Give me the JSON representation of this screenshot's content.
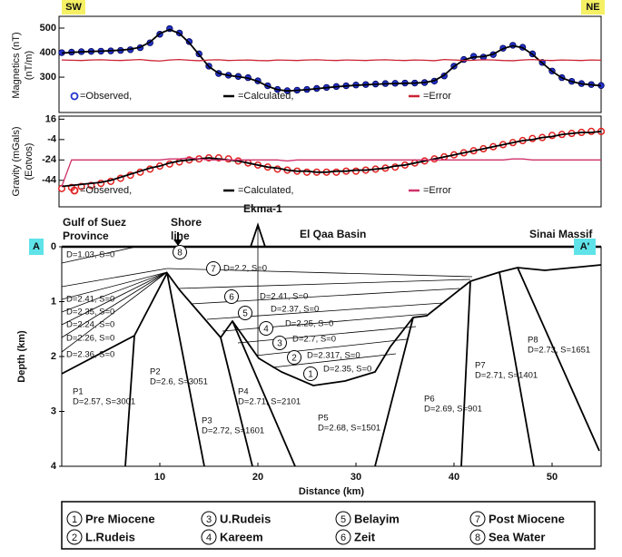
{
  "chart_data": [
    {
      "type": "line",
      "ylabel": "Magnetics (nT)",
      "ylabel_sub": "(nT/m)",
      "corner_labels": [
        "SW",
        "NE"
      ],
      "xlim": [
        0,
        55
      ],
      "ylim": [
        156,
        548
      ],
      "yticks": [
        300,
        400,
        500
      ],
      "x": [
        0,
        1,
        2,
        3,
        4,
        5,
        6,
        7,
        8,
        9,
        10,
        11,
        12,
        13,
        14,
        15,
        16,
        17,
        18,
        19,
        20,
        21,
        22,
        23,
        24,
        25,
        26,
        27,
        28,
        29,
        30,
        31,
        32,
        33,
        34,
        35,
        36,
        37,
        38,
        39,
        40,
        41,
        42,
        43,
        44,
        45,
        46,
        47,
        48,
        49,
        50,
        51,
        52,
        53,
        54,
        55
      ],
      "series": [
        {
          "name": "=Observed,",
          "style": "markers",
          "color": "#2233cc",
          "values": [
            400,
            402,
            404,
            405,
            406,
            407,
            409,
            412,
            420,
            440,
            475,
            498,
            480,
            445,
            395,
            345,
            315,
            308,
            303,
            298,
            285,
            265,
            250,
            245,
            247,
            250,
            254,
            258,
            262,
            265,
            268,
            270,
            272,
            274,
            275,
            276,
            276,
            278,
            284,
            305,
            345,
            372,
            385,
            382,
            392,
            418,
            430,
            422,
            395,
            360,
            325,
            298,
            283,
            274,
            270,
            266
          ]
        },
        {
          "name": "=Calculated,",
          "style": "line",
          "color": "#000000",
          "values": [
            398,
            401,
            403,
            405,
            406,
            408,
            410,
            414,
            422,
            443,
            478,
            494,
            478,
            440,
            392,
            343,
            316,
            307,
            302,
            296,
            283,
            263,
            249,
            244,
            246,
            249,
            253,
            257,
            261,
            264,
            267,
            269,
            271,
            273,
            274,
            275,
            276,
            278,
            286,
            308,
            344,
            370,
            382,
            384,
            394,
            416,
            428,
            420,
            393,
            358,
            324,
            297,
            282,
            273,
            269,
            265
          ]
        },
        {
          "name": "=Error",
          "style": "line",
          "color": "#cc2233",
          "values": [
            370,
            369,
            368,
            370,
            371,
            369,
            368,
            370,
            372,
            368,
            366,
            370,
            372,
            369,
            367,
            370,
            371,
            368,
            369,
            370,
            368,
            367,
            370,
            369,
            368,
            370,
            371,
            369,
            368,
            370,
            369,
            368,
            370,
            371,
            369,
            368,
            370,
            369,
            367,
            372,
            370,
            368,
            369,
            371,
            370,
            368,
            367,
            370,
            372,
            369,
            368,
            370,
            369,
            368,
            370,
            369
          ]
        }
      ]
    },
    {
      "type": "line",
      "ylabel": "Gravity (mGals)",
      "ylabel_sub": "(Eotvos)",
      "xlim": [
        0,
        55
      ],
      "ylim": [
        -70,
        19
      ],
      "yticks": [
        16,
        -4,
        -24,
        -44
      ],
      "x": [
        0,
        1,
        2,
        3,
        4,
        5,
        6,
        7,
        8,
        9,
        10,
        11,
        12,
        13,
        14,
        15,
        16,
        17,
        18,
        19,
        20,
        21,
        22,
        23,
        24,
        25,
        26,
        27,
        28,
        29,
        30,
        31,
        32,
        33,
        34,
        35,
        36,
        37,
        38,
        39,
        40,
        41,
        42,
        43,
        44,
        45,
        46,
        47,
        48,
        49,
        50,
        51,
        52,
        53,
        54,
        55
      ],
      "series": [
        {
          "name": "=Observed,",
          "style": "hollow",
          "color": "#e02020",
          "values": [
            -52,
            -51,
            -50,
            -49,
            -47,
            -45,
            -42,
            -39,
            -36,
            -33,
            -30,
            -28,
            -26,
            -24,
            -23,
            -22,
            -22,
            -23,
            -25,
            -27,
            -29,
            -31,
            -33,
            -34,
            -35,
            -36,
            -36,
            -36,
            -36,
            -35,
            -35,
            -34,
            -33,
            -32,
            -31,
            -29,
            -27,
            -25,
            -23,
            -21,
            -19,
            -17,
            -15,
            -13,
            -11,
            -9,
            -7,
            -5,
            -3,
            -2,
            0,
            1,
            2,
            3,
            4,
            4
          ]
        },
        {
          "name": "=Calculated,",
          "style": "line",
          "color": "#000000",
          "values": [
            -50,
            -49,
            -48,
            -47,
            -46,
            -44,
            -41,
            -38,
            -35,
            -32,
            -30,
            -27,
            -25,
            -24,
            -23,
            -22,
            -23,
            -24,
            -25,
            -27,
            -29,
            -31,
            -32,
            -34,
            -35,
            -35,
            -36,
            -36,
            -35,
            -35,
            -34,
            -34,
            -33,
            -32,
            -30,
            -29,
            -27,
            -25,
            -23,
            -21,
            -19,
            -17,
            -15,
            -13,
            -11,
            -9,
            -7,
            -5,
            -4,
            -2,
            -1,
            1,
            2,
            3,
            3,
            4
          ]
        },
        {
          "name": "=Error",
          "style": "line",
          "color": "#d0306a",
          "values": [
            -50,
            -24,
            -24,
            -24,
            -24,
            -24,
            -24,
            -24,
            -24,
            -24,
            -24,
            -23,
            -23,
            -22,
            -23,
            -24,
            -24,
            -24,
            -24,
            -24,
            -24,
            -24,
            -24,
            -25,
            -24,
            -24,
            -24,
            -24,
            -24,
            -24,
            -24,
            -24,
            -24,
            -24,
            -24,
            -24,
            -24,
            -24,
            -24,
            -24,
            -24,
            -24,
            -24,
            -24,
            -24,
            -24,
            -23,
            -23,
            -24,
            -24,
            -24,
            -24,
            -24,
            -24,
            -24,
            -24
          ]
        }
      ]
    },
    {
      "type": "section",
      "xlabel": "Distance (km)",
      "ylabel": "Depth (km)",
      "xlim": [
        0,
        55
      ],
      "ylim": [
        4,
        0
      ],
      "xticks": [
        10,
        20,
        30,
        40,
        50
      ],
      "yticks": [
        0,
        1,
        2,
        3,
        4
      ],
      "end_labels": [
        "A",
        "A'"
      ],
      "place_labels": [
        "Gulf of Suez",
        "Province",
        "Shore",
        "line",
        "Ekma-1",
        "El Qaa Basin",
        "Sinai Massif"
      ],
      "layer_labels": [
        "D=1.03, S=0",
        "D=2.2, S=0",
        "D=2.41, S=0",
        "D=2.35, S=0",
        "D=2.24, S=0",
        "D=2.26, S=0",
        "D=2.36, S=0",
        "D=2.41, S=0",
        "D=2.37, S=0",
        "D=2.25, S=0",
        "D=2.7, S=0",
        "D=2.317, S=0",
        "D=2.35, S=0"
      ],
      "blocks": [
        {
          "name": "P1",
          "label": "D=2.57, S=3001"
        },
        {
          "name": "P2",
          "label": "D=2.6, S=3051"
        },
        {
          "name": "P3",
          "label": "D=2.72, S=1601"
        },
        {
          "name": "P4",
          "label": "D=2.71, S=2101"
        },
        {
          "name": "P5",
          "label": "D=2.68, S=1501"
        },
        {
          "name": "P6",
          "label": "D=2.69, S=901"
        },
        {
          "name": "P7",
          "label": "D=2.71, S=1401"
        },
        {
          "name": "P8",
          "label": "D=2.73, S=1651"
        }
      ]
    }
  ],
  "legend": {
    "units": [
      {
        "number": "1",
        "name": "Pre Miocene"
      },
      {
        "number": "2",
        "name": "L.Rudeis"
      },
      {
        "number": "3",
        "name": "U.Rudeis"
      },
      {
        "number": "4",
        "name": "Kareem"
      },
      {
        "number": "5",
        "name": "Belayim"
      },
      {
        "number": "6",
        "name": "Zeit"
      },
      {
        "number": "7",
        "name": "Post Miocene"
      },
      {
        "number": "8",
        "name": "Sea Water"
      }
    ]
  }
}
